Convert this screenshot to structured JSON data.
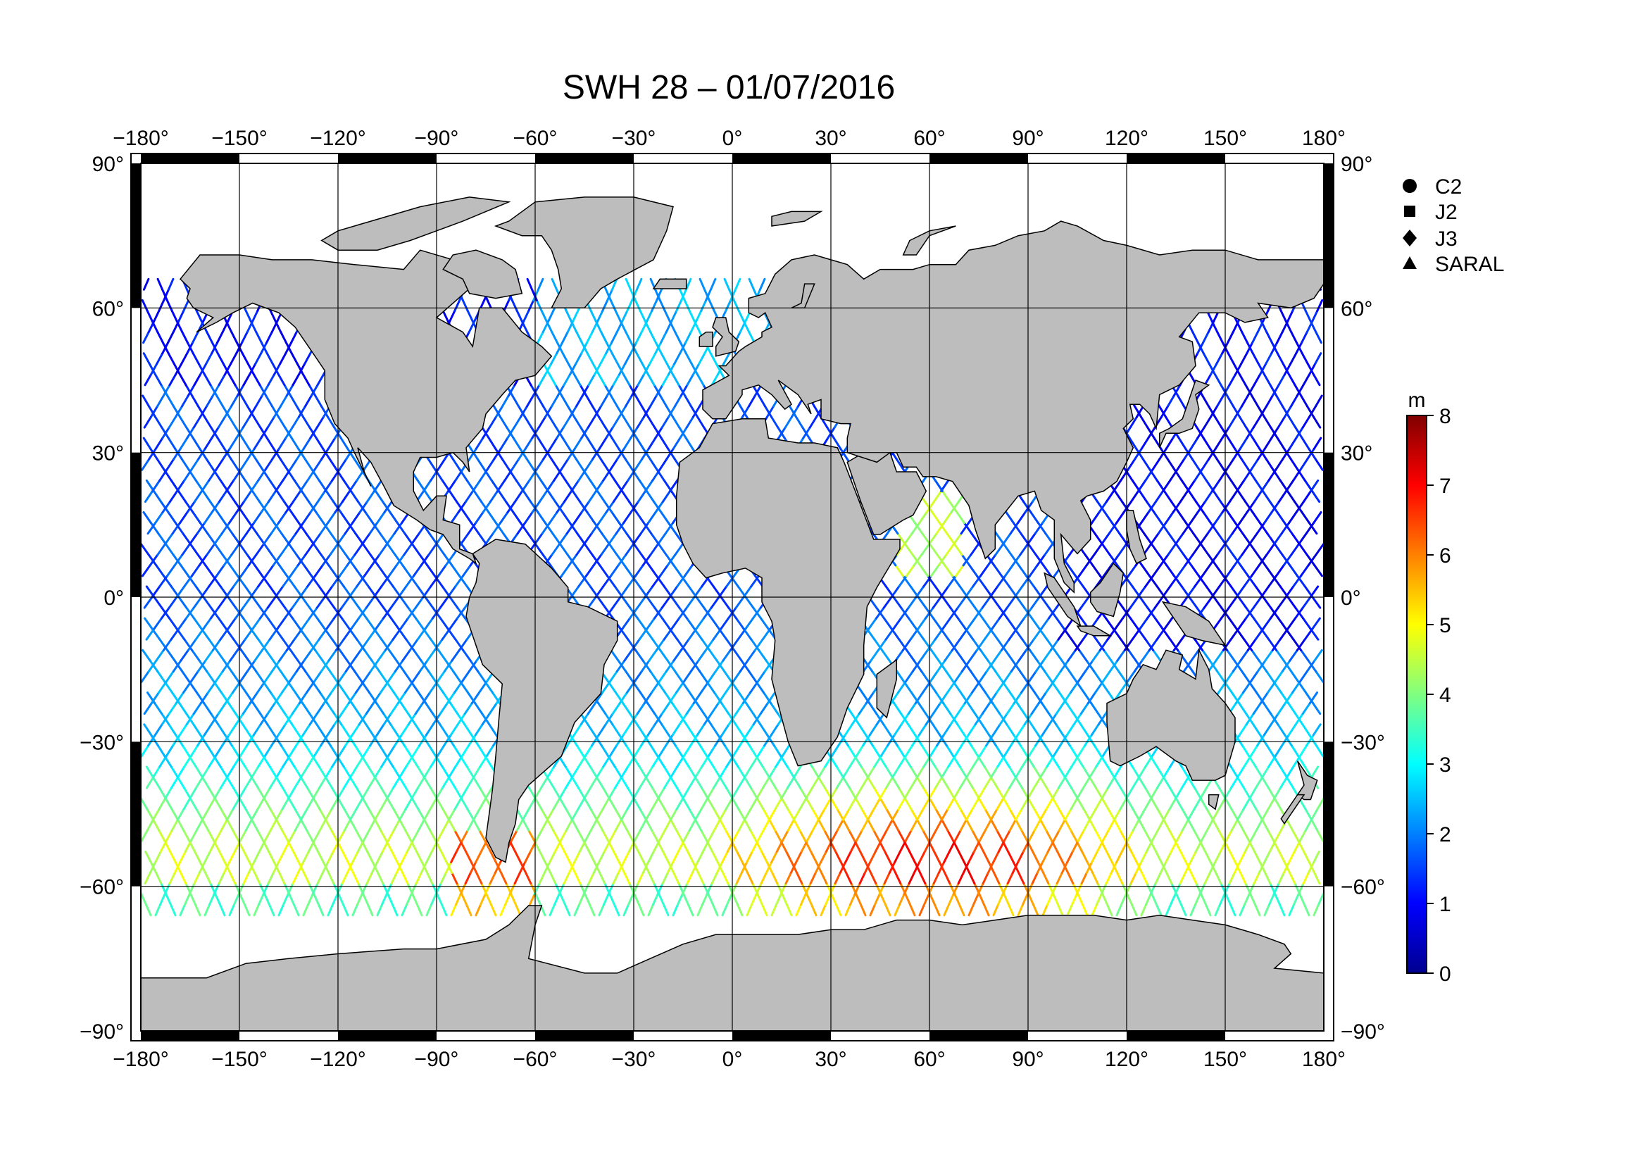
{
  "title": "SWH 28 – 01/07/2016",
  "lon_ticks": [
    "−180°",
    "−150°",
    "−120°",
    "−90°",
    "−60°",
    "−30°",
    "0°",
    "30°",
    "60°",
    "90°",
    "120°",
    "150°",
    "180°"
  ],
  "lat_ticks": [
    "90°",
    "60°",
    "30°",
    "0°",
    "−30°",
    "−60°",
    "−90°"
  ],
  "legend": {
    "items": [
      {
        "label": "C2",
        "marker": "circle"
      },
      {
        "label": "J2",
        "marker": "square"
      },
      {
        "label": "J3",
        "marker": "diamond"
      },
      {
        "label": "SARAL",
        "marker": "triangle"
      }
    ]
  },
  "colorbar": {
    "unit": "m",
    "ticks": [
      "0",
      "1",
      "2",
      "3",
      "4",
      "5",
      "6",
      "7",
      "8"
    ],
    "range": [
      0,
      8
    ],
    "colors": [
      "#00008f",
      "#0000ff",
      "#0080ff",
      "#00ffff",
      "#80ff80",
      "#ffff00",
      "#ff8000",
      "#ff0000",
      "#800000"
    ]
  },
  "colors": {
    "land": "#bdbdbd",
    "ice": "#ffffff",
    "frame": "#000000"
  },
  "chart_data": {
    "type": "scatter",
    "title": "SWH 28 – 01/07/2016",
    "xlim": [
      -180,
      180
    ],
    "ylim": [
      -90,
      90
    ],
    "grid": true,
    "legend_placement": "right",
    "series": [
      {
        "name": "C2"
      },
      {
        "name": "J2"
      },
      {
        "name": "J3"
      },
      {
        "name": "SARAL"
      }
    ],
    "tracks": [
      {
        "lon": -170,
        "lat": [
          60,
          -64
        ],
        "swh": [
          1.2,
          1.5,
          2.0,
          2.6,
          3.0,
          3.6,
          4.2
        ]
      },
      {
        "lon": -150,
        "lat": [
          60,
          -64
        ],
        "swh": [
          1.0,
          1.4,
          2.0,
          2.5,
          3.0,
          3.4,
          3.8
        ]
      },
      {
        "lon": -130,
        "lat": [
          55,
          -64
        ],
        "swh": [
          1.3,
          1.8,
          2.4,
          3.0,
          3.6,
          4.0,
          3.8
        ]
      },
      {
        "lon": -110,
        "lat": [
          30,
          -64
        ],
        "swh": [
          1.5,
          2.0,
          2.4,
          2.8,
          3.2,
          3.2,
          2.6
        ]
      },
      {
        "lon": -95,
        "lat": [
          10,
          -66
        ],
        "swh": [
          1.6,
          2.0,
          2.4,
          2.8,
          3.3,
          3.6,
          3.6
        ]
      },
      {
        "lon": -45,
        "lat": [
          65,
          -62
        ],
        "swh": [
          1.0,
          0.9,
          1.2,
          1.4,
          1.8,
          2.6,
          3.4
        ]
      },
      {
        "lon": -25,
        "lat": [
          70,
          -60
        ],
        "swh": [
          2.0,
          2.4,
          1.5,
          1.4,
          2.4,
          3.4,
          4.6
        ]
      },
      {
        "lon": 5,
        "lat": [
          -5,
          -60
        ],
        "swh": [
          2.4,
          2.8,
          3.4,
          4.0,
          5.2,
          6.6,
          7.0
        ]
      },
      {
        "lon": 55,
        "lat": [
          -5,
          -62
        ],
        "swh": [
          3.0,
          3.2,
          3.6,
          4.2,
          5.4,
          6.6,
          5.4
        ]
      },
      {
        "lon": 75,
        "lat": [
          25,
          -62
        ],
        "swh": [
          4.4,
          3.8,
          3.4,
          3.8,
          5.4,
          7.2,
          6.8
        ]
      },
      {
        "lon": 95,
        "lat": [
          -5,
          -62
        ],
        "swh": [
          3.0,
          3.2,
          3.8,
          4.6,
          6.0,
          7.2,
          6.0
        ]
      },
      {
        "lon": 135,
        "lat": [
          60,
          0
        ],
        "swh": [
          1.0,
          1.2,
          1.3,
          1.4,
          1.5,
          1.6,
          1.8
        ]
      },
      {
        "lon": 155,
        "lat": [
          60,
          -64
        ],
        "swh": [
          1.2,
          1.4,
          1.6,
          2.0,
          2.8,
          3.8,
          4.8
        ]
      },
      {
        "lon": 172,
        "lat": [
          60,
          -64
        ],
        "swh": [
          1.4,
          1.6,
          1.8,
          2.2,
          3.0,
          4.2,
          5.0
        ]
      }
    ]
  }
}
